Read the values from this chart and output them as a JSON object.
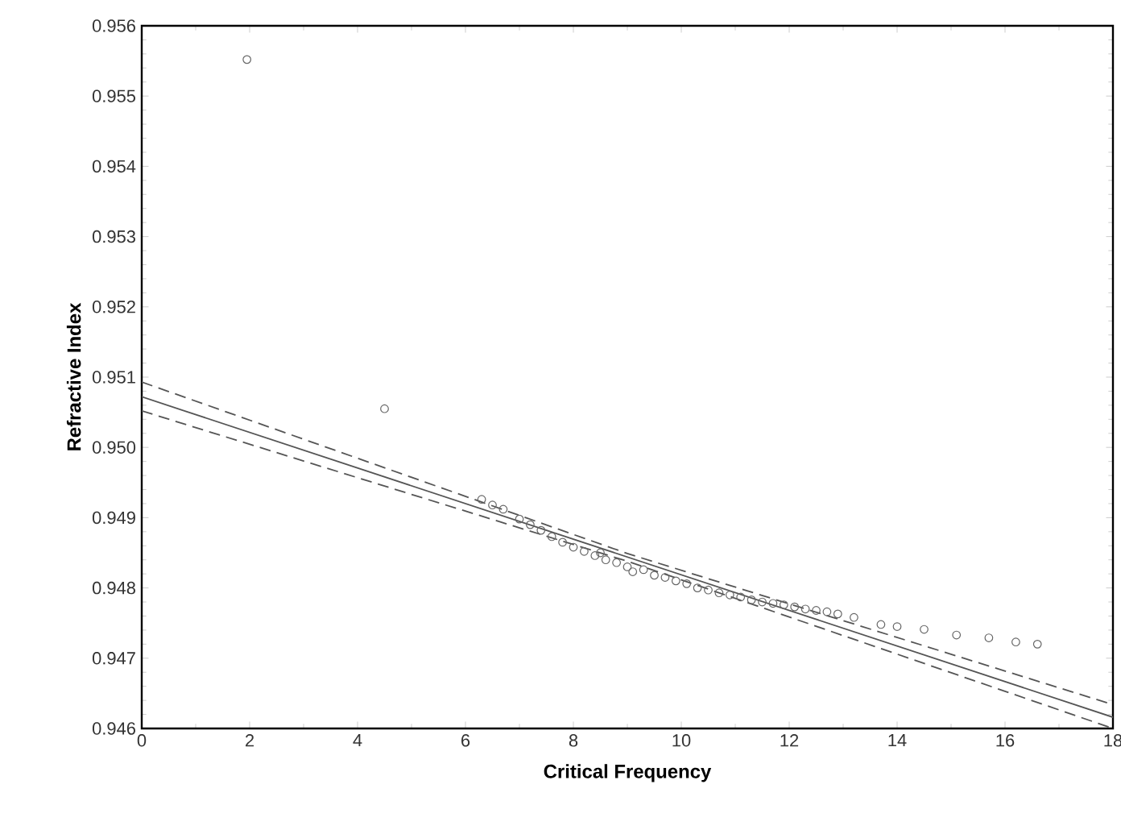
{
  "chart_data": {
    "type": "scatter",
    "xlabel": "Critical Frequency",
    "ylabel": "Refractive Index",
    "xlim": [
      0,
      18
    ],
    "xticks": [
      0,
      2,
      4,
      6,
      8,
      10,
      12,
      14,
      16,
      18
    ],
    "ylim": [
      0.946,
      0.956
    ],
    "yticks": [
      {
        "value": 0.946,
        "label": "0.946"
      },
      {
        "value": 0.947,
        "label": "0.947"
      },
      {
        "value": 0.948,
        "label": "0.948"
      },
      {
        "value": 0.949,
        "label": "0.949"
      },
      {
        "value": 0.95,
        "label": "0.950"
      },
      {
        "value": 0.951,
        "label": "0.951"
      },
      {
        "value": 0.952,
        "label": "0.952"
      },
      {
        "value": 0.953,
        "label": "0.953"
      },
      {
        "value": 0.954,
        "label": "0.954"
      },
      {
        "value": 0.955,
        "label": "0.955"
      },
      {
        "value": 0.956,
        "label": "0.956"
      }
    ],
    "grid": false,
    "series": [
      {
        "marker": "circle",
        "color": "#666666",
        "x": [
          1.95,
          4.5,
          6.3,
          6.5,
          6.7,
          7.0,
          7.2,
          7.4,
          7.6,
          7.8,
          8.0,
          8.2,
          8.4,
          8.5,
          8.6,
          8.8,
          9.0,
          9.1,
          9.3,
          9.5,
          9.7,
          9.9,
          10.1,
          10.3,
          10.5,
          10.7,
          10.9,
          11.1,
          11.3,
          11.5,
          11.7,
          11.9,
          12.1,
          12.3,
          12.5,
          12.7,
          12.9,
          13.2,
          13.7,
          14.0,
          14.5,
          15.1,
          15.7,
          16.2,
          16.6
        ],
        "values": [
          0.95552,
          0.95055,
          0.94926,
          0.94918,
          0.94912,
          0.94898,
          0.9489,
          0.94882,
          0.94873,
          0.94865,
          0.94858,
          0.94852,
          0.94846,
          0.9485,
          0.9484,
          0.94836,
          0.9483,
          0.94823,
          0.94826,
          0.94818,
          0.94815,
          0.9481,
          0.94806,
          0.948,
          0.94797,
          0.94793,
          0.9479,
          0.94787,
          0.94783,
          0.9478,
          0.94778,
          0.94776,
          0.94773,
          0.9477,
          0.94768,
          0.94766,
          0.94763,
          0.94758,
          0.94748,
          0.94745,
          0.94741,
          0.94733,
          0.94729,
          0.94723,
          0.9472
        ]
      },
      {
        "type": "line",
        "marker": "none",
        "line_style": "solid",
        "color": "#555555",
        "x": [
          0,
          18
        ],
        "values": [
          0.95072,
          0.94616
        ]
      },
      {
        "type": "line",
        "marker": "none",
        "line_style": "dashed",
        "color": "#555555",
        "x": [
          0,
          9,
          18
        ],
        "values": [
          0.95093,
          0.94849,
          0.94634
        ]
      },
      {
        "type": "line",
        "marker": "none",
        "line_style": "dashed",
        "color": "#555555",
        "x": [
          0,
          9,
          18
        ],
        "values": [
          0.95052,
          0.94838,
          0.946
        ]
      }
    ]
  }
}
